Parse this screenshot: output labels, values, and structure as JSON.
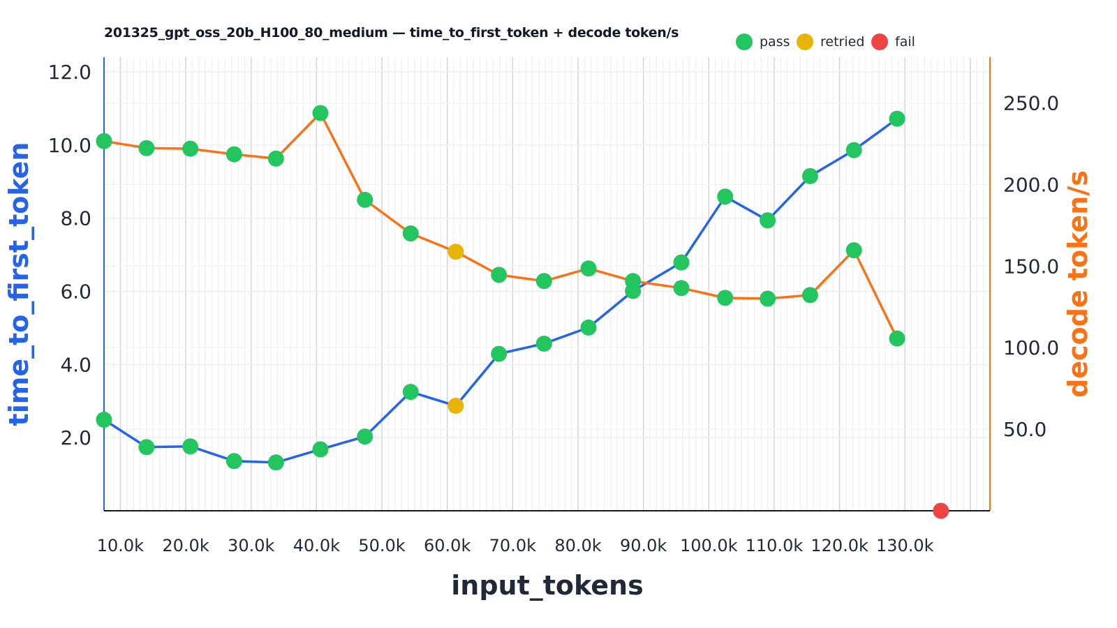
{
  "chart_data": {
    "type": "line",
    "title": "201325_gpt_oss_20b_H100_80_medium — time_to_first_token + decode token/s",
    "xlabel": "input_tokens",
    "ylabel_left": "time_to_first_token",
    "ylabel_right": "decode token/s",
    "xlim": [
      7500,
      143000
    ],
    "ylim_left": [
      0,
      12.4
    ],
    "ylim_right": [
      0,
      278
    ],
    "x_ticks": [
      10000,
      20000,
      30000,
      40000,
      50000,
      60000,
      70000,
      80000,
      90000,
      100000,
      110000,
      120000,
      130000
    ],
    "x_tick_labels": [
      "10.0k",
      "20.0k",
      "30.0k",
      "40.0k",
      "50.0k",
      "60.0k",
      "70.0k",
      "80.0k",
      "90.0k",
      "100.0k",
      "110.0k",
      "120.0k",
      "130.0k"
    ],
    "y_left_ticks": [
      2,
      4,
      6,
      8,
      10,
      12
    ],
    "y_left_tick_labels": [
      "2.0",
      "4.0",
      "6.0",
      "8.0",
      "10.0",
      "12.0"
    ],
    "y_right_ticks": [
      50,
      100,
      150,
      200,
      250
    ],
    "y_right_tick_labels": [
      "50.0",
      "100.0",
      "150.0",
      "200.0",
      "250.0"
    ],
    "grid": true,
    "legend_position": "top-right",
    "legend": [
      {
        "label": "pass",
        "color": "#22c55e"
      },
      {
        "label": "retried",
        "color": "#eab308"
      },
      {
        "label": "fail",
        "color": "#ef4444"
      }
    ],
    "colors": {
      "ttft": "#2563eb",
      "decode": "#f97316",
      "pass": "#22c55e",
      "retried": "#eab308",
      "fail": "#ef4444"
    },
    "x": [
      7500,
      14000,
      20700,
      27400,
      33800,
      40600,
      47400,
      54400,
      61300,
      67900,
      74800,
      81600,
      88400,
      95800,
      102500,
      109000,
      115500,
      122200,
      128800,
      135500
    ],
    "status": [
      "pass",
      "pass",
      "pass",
      "pass",
      "pass",
      "pass",
      "pass",
      "pass",
      "retried",
      "pass",
      "pass",
      "pass",
      "pass",
      "pass",
      "pass",
      "pass",
      "pass",
      "pass",
      "pass",
      "fail"
    ],
    "series": [
      {
        "name": "time_to_first_token",
        "axis": "left",
        "values": [
          2.49,
          1.74,
          1.76,
          1.36,
          1.32,
          1.68,
          2.03,
          3.25,
          2.87,
          4.29,
          4.57,
          5.01,
          6.01,
          6.79,
          8.59,
          7.94,
          9.15,
          9.86,
          10.72,
          0
        ]
      },
      {
        "name": "decode token/s",
        "axis": "right",
        "values": [
          226.6,
          222.3,
          221.9,
          218.5,
          215.9,
          243.8,
          190.6,
          170.0,
          158.8,
          144.6,
          140.8,
          148.5,
          140.8,
          136.5,
          130.5,
          130.0,
          132.2,
          159.7,
          105.6,
          0
        ]
      }
    ]
  }
}
